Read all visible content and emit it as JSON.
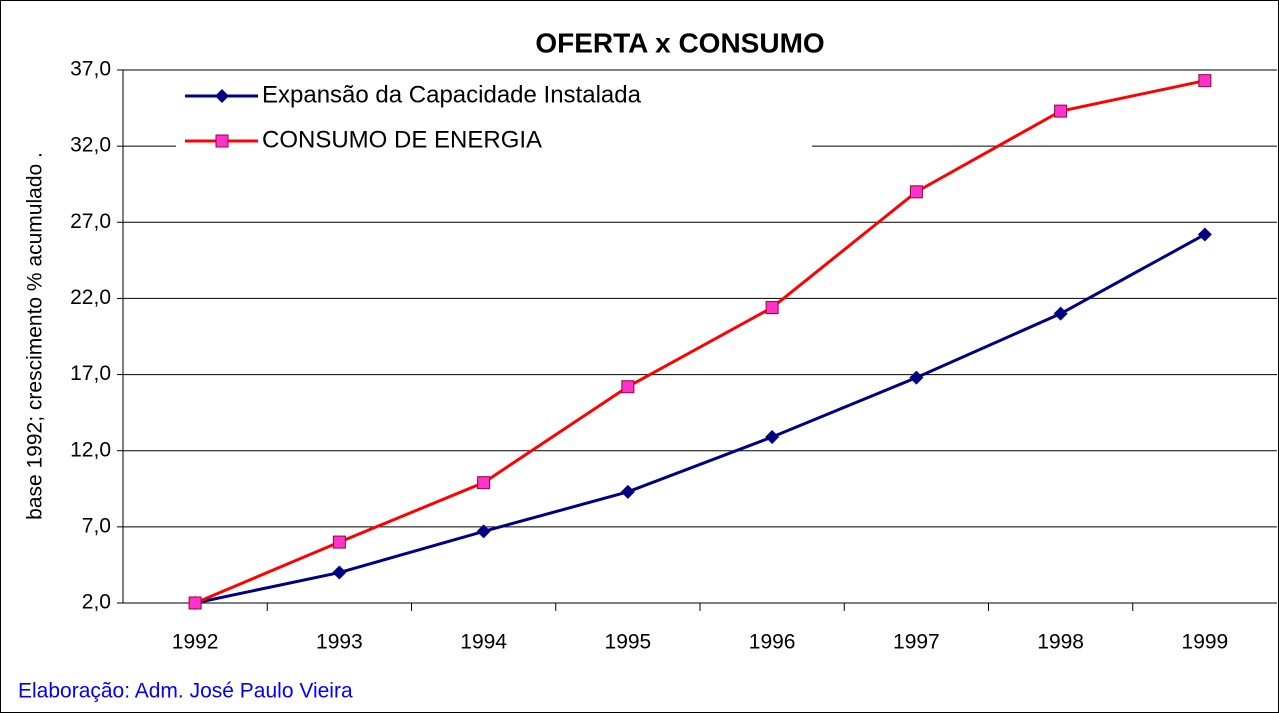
{
  "chart_data": {
    "type": "line",
    "title": "OFERTA x CONSUMO",
    "y_label": "base 1992; crescimento % acumulado .",
    "annotation": "Elaboração: Adm. José Paulo Vieira",
    "categories": [
      "1992",
      "1993",
      "1994",
      "1995",
      "1996",
      "1997",
      "1998",
      "1999"
    ],
    "series": [
      {
        "name": "Expansão da Capacidade Instalada",
        "color": "#000080",
        "marker": "diamond",
        "values": [
          2.0,
          4.0,
          6.7,
          9.3,
          12.9,
          16.8,
          21.0,
          26.2
        ]
      },
      {
        "name": "CONSUMO DE ENERGIA",
        "color": "#ff0000",
        "marker": "square",
        "values": [
          2.0,
          6.0,
          9.9,
          16.2,
          21.4,
          29.0,
          34.3,
          36.3
        ]
      }
    ],
    "ylim": [
      2,
      37
    ],
    "yticks": [
      {
        "value": 2,
        "label": "2,0"
      },
      {
        "value": 7,
        "label": "7,0"
      },
      {
        "value": 12,
        "label": "12,0"
      },
      {
        "value": 17,
        "label": "17,0"
      },
      {
        "value": 22,
        "label": "22,0"
      },
      {
        "value": 27,
        "label": "27,0"
      },
      {
        "value": 32,
        "label": "32,0"
      },
      {
        "value": 37,
        "label": "37,0"
      }
    ],
    "grid": true
  }
}
